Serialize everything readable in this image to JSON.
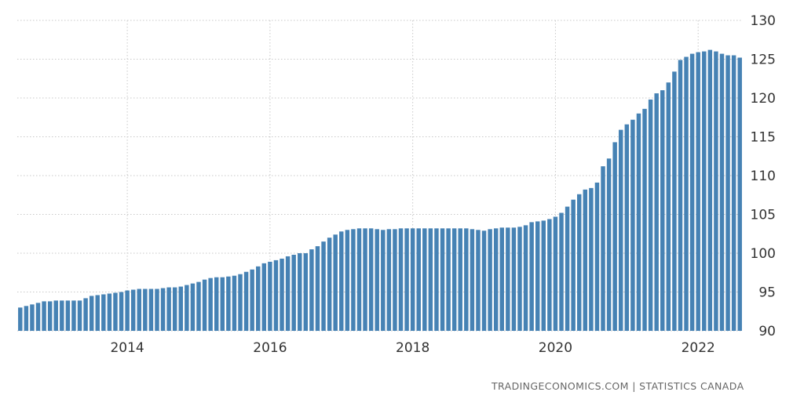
{
  "chart_data": {
    "type": "bar",
    "title": "",
    "xlabel": "",
    "ylabel": "",
    "ylim": [
      90,
      130
    ],
    "y_ticks": [
      90,
      95,
      100,
      105,
      110,
      115,
      120,
      125,
      130
    ],
    "y_axis_side": "right",
    "x_ticks": [
      "2014",
      "2016",
      "2018",
      "2020",
      "2022"
    ],
    "grid": true,
    "legend": "none",
    "bar_color": "#4682b4",
    "start": "2013-01",
    "frequency": "monthly",
    "series": [
      {
        "values": [
          93.0,
          93.2,
          93.4,
          93.6,
          93.8,
          93.8,
          93.9,
          93.9,
          93.9,
          93.9,
          93.9,
          94.2,
          94.5,
          94.6,
          94.7,
          94.8,
          94.9,
          95.0,
          95.2,
          95.3,
          95.4,
          95.4,
          95.4,
          95.4,
          95.5,
          95.6,
          95.6,
          95.7,
          95.9,
          96.1,
          96.3,
          96.6,
          96.8,
          96.9,
          96.9,
          97.0,
          97.1,
          97.3,
          97.6,
          97.9,
          98.3,
          98.7,
          98.9,
          99.1,
          99.3,
          99.6,
          99.8,
          100.0,
          100.0,
          100.5,
          100.9,
          101.5,
          102.0,
          102.4,
          102.8,
          103.0,
          103.1,
          103.2,
          103.2,
          103.2,
          103.1,
          103.0,
          103.1,
          103.1,
          103.2,
          103.2,
          103.2,
          103.2,
          103.2,
          103.2,
          103.2,
          103.2,
          103.2,
          103.2,
          103.2,
          103.2,
          103.1,
          103.0,
          102.9,
          103.1,
          103.2,
          103.3,
          103.3,
          103.3,
          103.4,
          103.6,
          104.0,
          104.1,
          104.2,
          104.4,
          104.7,
          105.2,
          106.0,
          106.9,
          107.6,
          108.2,
          108.4,
          109.1,
          111.2,
          112.2,
          114.3,
          115.9,
          116.6,
          117.2,
          118.0,
          118.6,
          119.8,
          120.6,
          121.0,
          122.0,
          123.4,
          124.9,
          125.3,
          125.7,
          125.9,
          126.0,
          126.2,
          126.0,
          125.7,
          125.5,
          125.5,
          125.2
        ]
      }
    ]
  },
  "footer": {
    "source": "TRADINGECONOMICS.COM | STATISTICS CANADA"
  }
}
